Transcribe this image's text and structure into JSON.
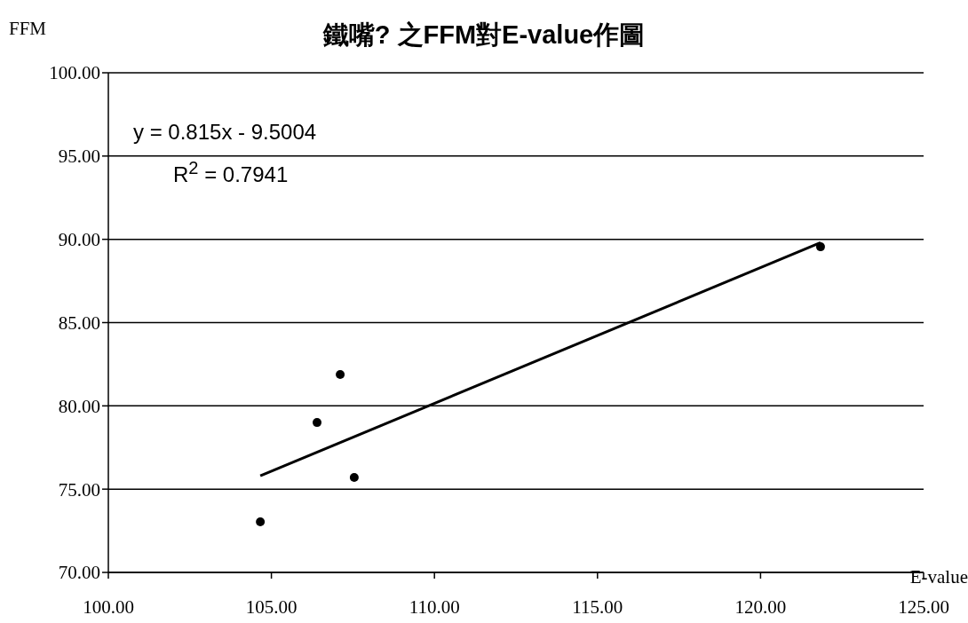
{
  "chart_data": {
    "type": "scatter",
    "title": "鐵嘴? 之FFM對E-value作圖",
    "xlabel": "E-value",
    "ylabel": "FFM",
    "annotations": [
      "y = 0.815x - 9.5004",
      "R$^{2}$ = 0.7941"
    ],
    "series": [
      {
        "color": "#000000",
        "x": [
          104.66,
          106.4,
          107.11,
          107.54,
          121.84
        ],
        "values": [
          73.04,
          79.0,
          81.88,
          75.7,
          89.55
        ]
      },
      {
        "type": "line",
        "marker": "none",
        "color": "#000000",
        "x": [
          104.66,
          121.84
        ],
        "values": [
          75.8,
          89.8
        ]
      }
    ],
    "xlim": [
      100,
      125
    ],
    "xticks": [
      {
        "value": 100,
        "label": "100.00"
      },
      {
        "value": 105,
        "label": "105.00"
      },
      {
        "value": 110,
        "label": "110.00"
      },
      {
        "value": 115,
        "label": "115.00"
      },
      {
        "value": 120,
        "label": "120.00"
      },
      {
        "value": 125,
        "label": "125.00"
      }
    ],
    "ylim": [
      70,
      100
    ],
    "yticks": [
      {
        "value": 70,
        "label": "70.00"
      },
      {
        "value": 75,
        "label": "75.00"
      },
      {
        "value": 80,
        "label": "80.00"
      },
      {
        "value": 85,
        "label": "85.00"
      },
      {
        "value": 90,
        "label": "90.00"
      },
      {
        "value": 95,
        "label": "95.00"
      },
      {
        "value": 100,
        "label": "100.00"
      }
    ],
    "grid": "y",
    "legend": false,
    "marker": "circle",
    "line_style": "solid"
  }
}
